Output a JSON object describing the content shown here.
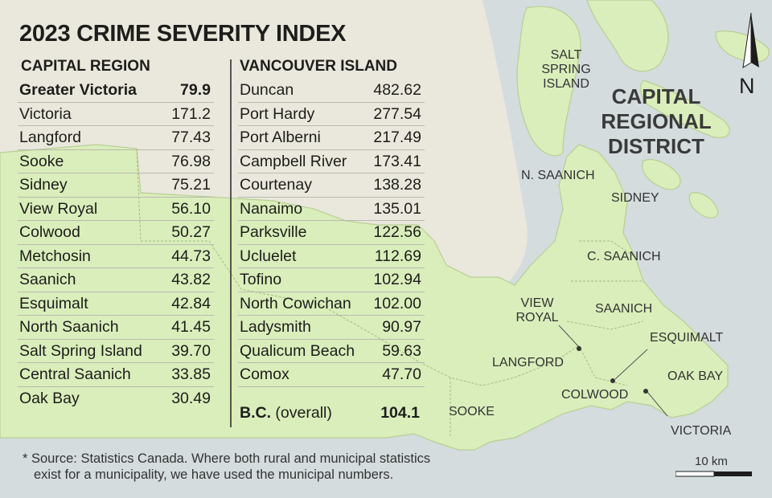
{
  "title": "2023 CRIME SEVERITY INDEX",
  "capital_region": {
    "heading": "CAPITAL REGION",
    "rows": [
      {
        "name": "Greater Victoria",
        "value": "79.9"
      },
      {
        "name": "Victoria",
        "value": "171.2"
      },
      {
        "name": "Langford",
        "value": "77.43"
      },
      {
        "name": "Sooke",
        "value": "76.98"
      },
      {
        "name": "Sidney",
        "value": "75.21"
      },
      {
        "name": "View Royal",
        "value": "56.10"
      },
      {
        "name": "Colwood",
        "value": "50.27"
      },
      {
        "name": "Metchosin",
        "value": "44.73"
      },
      {
        "name": "Saanich",
        "value": "43.82"
      },
      {
        "name": "Esquimalt",
        "value": "42.84"
      },
      {
        "name": "North Saanich",
        "value": "41.45"
      },
      {
        "name": "Salt Spring Island",
        "value": "39.70"
      },
      {
        "name": "Central Saanich",
        "value": "33.85"
      },
      {
        "name": "Oak Bay",
        "value": "30.49"
      }
    ]
  },
  "vancouver_island": {
    "heading": "VANCOUVER ISLAND",
    "rows": [
      {
        "name": "Duncan",
        "value": "482.62"
      },
      {
        "name": "Port Hardy",
        "value": "277.54"
      },
      {
        "name": "Port Alberni",
        "value": "217.49"
      },
      {
        "name": "Campbell River",
        "value": "173.41"
      },
      {
        "name": "Courtenay",
        "value": "138.28"
      },
      {
        "name": "Nanaimo",
        "value": "135.01"
      },
      {
        "name": "Parksville",
        "value": "122.56"
      },
      {
        "name": "Ucluelet",
        "value": "112.69"
      },
      {
        "name": "Tofino",
        "value": "102.94"
      },
      {
        "name": "North Cowichan",
        "value": "102.00"
      },
      {
        "name": "Ladysmith",
        "value": "90.97"
      },
      {
        "name": "Qualicum Beach",
        "value": "59.63"
      },
      {
        "name": "Comox",
        "value": "47.70"
      }
    ],
    "overall": {
      "name_bold": "B.C.",
      "name_rest": "(overall)",
      "value": "104.1"
    }
  },
  "map": {
    "region_title_lines": [
      "CAPITAL",
      "REGIONAL",
      "DISTRICT"
    ],
    "labels": {
      "salt_spring": [
        "SALT",
        "SPRING",
        "ISLAND"
      ],
      "n_saanich": "N. SAANICH",
      "sidney": "SIDNEY",
      "c_saanich": "C. SAANICH",
      "view_royal": [
        "VIEW",
        "ROYAL"
      ],
      "saanich": "SAANICH",
      "esquimalt": "ESQUIMALT",
      "langford": "LANGFORD",
      "oak_bay": "OAK BAY",
      "colwood": "COLWOOD",
      "sooke": "SOOKE",
      "victoria": "VICTORIA"
    },
    "north_letter": "N",
    "scale_label": "10 km",
    "colors": {
      "water": "#d4dcde",
      "land": "#eae8dc",
      "crd": "#daeebb"
    }
  },
  "footnote": [
    "* Source: Statistics Canada. Where both rural and municipal statistics",
    "exist for a municipality, we have used the municipal numbers."
  ]
}
